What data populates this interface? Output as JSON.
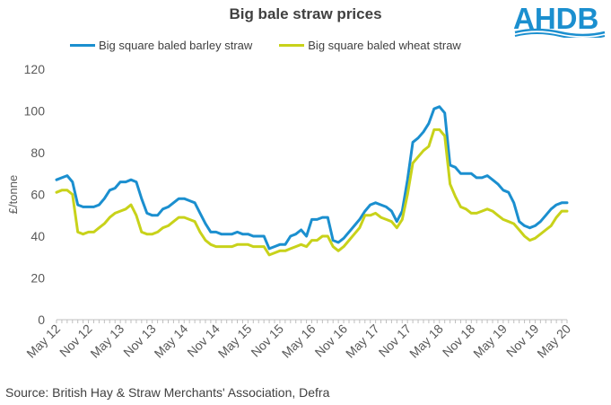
{
  "title": "Big bale straw prices",
  "logo_text": "AHDB",
  "source": "Source:  British Hay & Straw Merchants' Association, Defra",
  "colors": {
    "barley": "#1b8fcf",
    "wheat": "#c8d21a",
    "logo": "#1b8fcf",
    "axis": "#bfbfbf",
    "text": "#595959"
  },
  "chart_data": {
    "type": "line",
    "title": "Big bale straw prices",
    "xlabel": "",
    "ylabel": "£/tonne",
    "ylim": [
      0,
      120
    ],
    "yticks": [
      0,
      20,
      40,
      60,
      80,
      100,
      120
    ],
    "grid": false,
    "legend_position": "top",
    "x_tick_labels": [
      "May 12",
      "Nov 12",
      "May 13",
      "Nov 13",
      "May 14",
      "Nov 14",
      "May 15",
      "Nov 15",
      "May 16",
      "Nov 16",
      "May 17",
      "Nov 17",
      "May 18",
      "Nov 18",
      "May 19",
      "Nov 19",
      "May 20"
    ],
    "series": [
      {
        "name": "Big square baled barley straw",
        "color": "#1b8fcf",
        "values": [
          67,
          68,
          69,
          66,
          55,
          54,
          54,
          54,
          55,
          58,
          62,
          63,
          66,
          66,
          67,
          66,
          58,
          51,
          50,
          50,
          53,
          54,
          56,
          58,
          58,
          57,
          56,
          51,
          46,
          42,
          42,
          41,
          41,
          41,
          42,
          41,
          41,
          40,
          40,
          40,
          34,
          35,
          36,
          36,
          40,
          41,
          43,
          40,
          48,
          48,
          49,
          49,
          38,
          37,
          39,
          42,
          45,
          48,
          52,
          55,
          56,
          55,
          54,
          52,
          47,
          52,
          67,
          85,
          87,
          90,
          94,
          101,
          102,
          99,
          74,
          73,
          70,
          70,
          70,
          68,
          68,
          69,
          67,
          65,
          62,
          61,
          56,
          47,
          45,
          44,
          45,
          47,
          50,
          53,
          55,
          56,
          56
        ]
      },
      {
        "name": "Big square baled wheat straw",
        "color": "#c8d21a",
        "values": [
          61,
          62,
          62,
          60,
          42,
          41,
          42,
          42,
          44,
          46,
          49,
          51,
          52,
          53,
          55,
          50,
          42,
          41,
          41,
          42,
          44,
          45,
          47,
          49,
          49,
          48,
          47,
          42,
          38,
          36,
          35,
          35,
          35,
          35,
          36,
          36,
          36,
          35,
          35,
          35,
          31,
          32,
          33,
          33,
          34,
          35,
          36,
          35,
          38,
          38,
          40,
          40,
          35,
          33,
          35,
          38,
          41,
          44,
          50,
          50,
          51,
          49,
          48,
          47,
          44,
          48,
          60,
          75,
          78,
          81,
          83,
          91,
          91,
          88,
          65,
          59,
          54,
          53,
          51,
          51,
          52,
          53,
          52,
          50,
          48,
          47,
          46,
          43,
          40,
          38,
          39,
          41,
          43,
          45,
          49,
          52,
          52
        ]
      }
    ]
  }
}
